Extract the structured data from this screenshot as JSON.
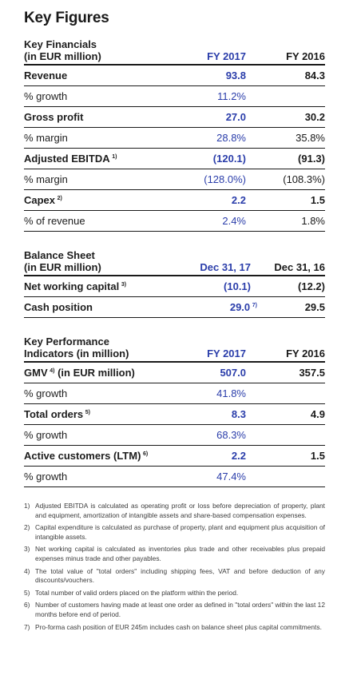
{
  "title": "Key Figures",
  "financials": {
    "header_line1": "Key Financials",
    "header_line2": "(in EUR million)",
    "col1": "FY 2017",
    "col2": "FY 2016",
    "rows": [
      {
        "label": "Revenue",
        "sup": "",
        "v1": "93.8",
        "v2": "84.3",
        "bold": true
      },
      {
        "label": "% growth",
        "sup": "",
        "v1": "11.2%",
        "v2": "",
        "bold": false
      },
      {
        "label": "Gross profit",
        "sup": "",
        "v1": "27.0",
        "v2": "30.2",
        "bold": true
      },
      {
        "label": "% margin",
        "sup": "",
        "v1": "28.8%",
        "v2": "35.8%",
        "bold": false
      },
      {
        "label": "Adjusted EBITDA",
        "sup": "1)",
        "v1": "(120.1)",
        "v2": "(91.3)",
        "bold": true
      },
      {
        "label": "% margin",
        "sup": "",
        "v1": "(128.0%)",
        "v2": "(108.3%)",
        "bold": false
      },
      {
        "label": "Capex",
        "sup": "2)",
        "v1": "2.2",
        "v2": "1.5",
        "bold": true
      },
      {
        "label": "% of revenue",
        "sup": "",
        "v1": "2.4%",
        "v2": "1.8%",
        "bold": false
      }
    ]
  },
  "balance": {
    "header_line1": "Balance Sheet",
    "header_line2": "(in EUR million)",
    "col1": "Dec 31, 17",
    "col2": "Dec 31, 16",
    "rows": [
      {
        "label": "Net working capital",
        "sup": "3)",
        "v1": "(10.1)",
        "v1sup": "",
        "v2": "(12.2)",
        "bold": true
      },
      {
        "label": "Cash position",
        "sup": "",
        "v1": "29.0",
        "v1sup": "7)",
        "v2": "29.5",
        "bold": true
      }
    ]
  },
  "kpi": {
    "header_line1": "Key Performance",
    "header_line2": "Indicators (in million)",
    "col1": "FY 2017",
    "col2": "FY 2016",
    "rows": [
      {
        "label": "GMV",
        "sup": "4)",
        "suffix": " (in EUR million)",
        "v1": "507.0",
        "v2": "357.5",
        "bold": true
      },
      {
        "label": "% growth",
        "sup": "",
        "suffix": "",
        "v1": "41.8%",
        "v2": "",
        "bold": false
      },
      {
        "label": "Total orders",
        "sup": "5)",
        "suffix": "",
        "v1": "8.3",
        "v2": "4.9",
        "bold": true
      },
      {
        "label": "% growth",
        "sup": "",
        "suffix": "",
        "v1": "68.3%",
        "v2": "",
        "bold": false
      },
      {
        "label": "Active customers (LTM)",
        "sup": "6)",
        "suffix": "",
        "v1": "2.2",
        "v2": "1.5",
        "bold": true
      },
      {
        "label": "% growth",
        "sup": "",
        "suffix": "",
        "v1": "47.4%",
        "v2": "",
        "bold": false
      }
    ]
  },
  "footnotes": [
    {
      "n": "1)",
      "t": "Adjusted EBITDA is calculated as operating profit or loss before depreciation of property, plant and equipment, amortization of intangible assets and share-based compensation expenses."
    },
    {
      "n": "2)",
      "t": "Capital expenditure is calculated as purchase of property, plant and equipment plus acquisition of intangible assets."
    },
    {
      "n": "3)",
      "t": "Net working capital is calculated as inventories plus trade and other receivables plus prepaid expenses minus trade and other payables."
    },
    {
      "n": "4)",
      "t": "The total value of \"total orders\" including shipping fees, VAT and before deduction of any discounts/vouchers."
    },
    {
      "n": "5)",
      "t": "Total number of valid orders placed on the platform within the period."
    },
    {
      "n": "6)",
      "t": "Number of customers having made at least one order as defined in \"total orders\" within the last 12 months before end of period."
    },
    {
      "n": "7)",
      "t": "Pro-forma cash position of EUR 245m includes cash on balance sheet plus capital commitments."
    }
  ]
}
